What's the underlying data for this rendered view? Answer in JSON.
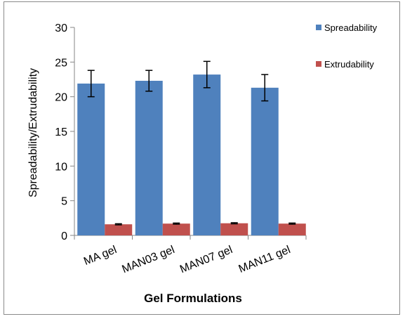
{
  "chart_data": {
    "type": "bar",
    "categories": [
      "MA gel",
      "MAN03 gel",
      "MAN07 gel",
      "MAN11 gel"
    ],
    "series": [
      {
        "name": "Spreadability",
        "values": [
          21.9,
          22.3,
          23.2,
          21.3
        ],
        "errors": [
          1.9,
          1.5,
          1.9,
          1.9
        ],
        "color": "#4f81bd"
      },
      {
        "name": "Extrudability",
        "values": [
          1.6,
          1.7,
          1.75,
          1.7
        ],
        "errors": [
          0.08,
          0.08,
          0.08,
          0.08
        ],
        "color": "#c0504d"
      }
    ],
    "xlabel": "Gel Formulations",
    "ylabel": "Spreadability/Extrudability",
    "ylim": [
      0,
      30
    ],
    "yticks": [
      "0",
      "5",
      "10",
      "15",
      "20",
      "25",
      "30"
    ],
    "legend_position": "top-right",
    "grid": false
  }
}
